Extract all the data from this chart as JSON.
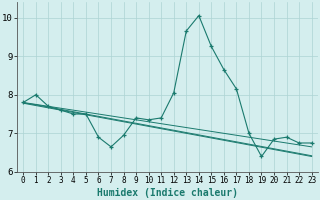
{
  "xlabel": "Humidex (Indice chaleur)",
  "background_color": "#d4eeee",
  "grid_color": "#add4d4",
  "line_color": "#1a7a6e",
  "xlim": [
    -0.5,
    23.5
  ],
  "ylim": [
    6.0,
    10.4
  ],
  "yticks": [
    6,
    7,
    8,
    9,
    10
  ],
  "xticks": [
    0,
    1,
    2,
    3,
    4,
    5,
    6,
    7,
    8,
    9,
    10,
    11,
    12,
    13,
    14,
    15,
    16,
    17,
    18,
    19,
    20,
    21,
    22,
    23
  ],
  "series_main": [
    7.8,
    8.0,
    7.7,
    7.6,
    7.5,
    7.5,
    6.9,
    6.65,
    6.95,
    7.4,
    7.35,
    7.4,
    8.05,
    9.65,
    10.05,
    9.25,
    8.65,
    8.15,
    7.0,
    6.4,
    6.85,
    6.9,
    6.75,
    6.75
  ],
  "series_trend1": [
    7.78,
    7.72,
    7.66,
    7.6,
    7.54,
    7.48,
    7.42,
    7.36,
    7.3,
    7.24,
    7.18,
    7.12,
    7.06,
    7.0,
    6.94,
    6.88,
    6.82,
    6.76,
    6.7,
    6.64,
    6.58,
    6.52,
    6.46,
    6.4
  ],
  "series_trend2": [
    7.8,
    7.75,
    7.7,
    7.65,
    7.6,
    7.55,
    7.5,
    7.45,
    7.4,
    7.35,
    7.3,
    7.25,
    7.2,
    7.15,
    7.1,
    7.05,
    7.0,
    6.95,
    6.9,
    6.85,
    6.8,
    6.75,
    6.7,
    6.65
  ],
  "series_trend3": [
    7.79,
    7.74,
    7.68,
    7.62,
    7.56,
    7.5,
    7.44,
    7.38,
    7.32,
    7.26,
    7.2,
    7.14,
    7.08,
    7.02,
    6.96,
    6.9,
    6.84,
    6.78,
    6.72,
    6.66,
    6.6,
    6.54,
    6.48,
    6.42
  ]
}
